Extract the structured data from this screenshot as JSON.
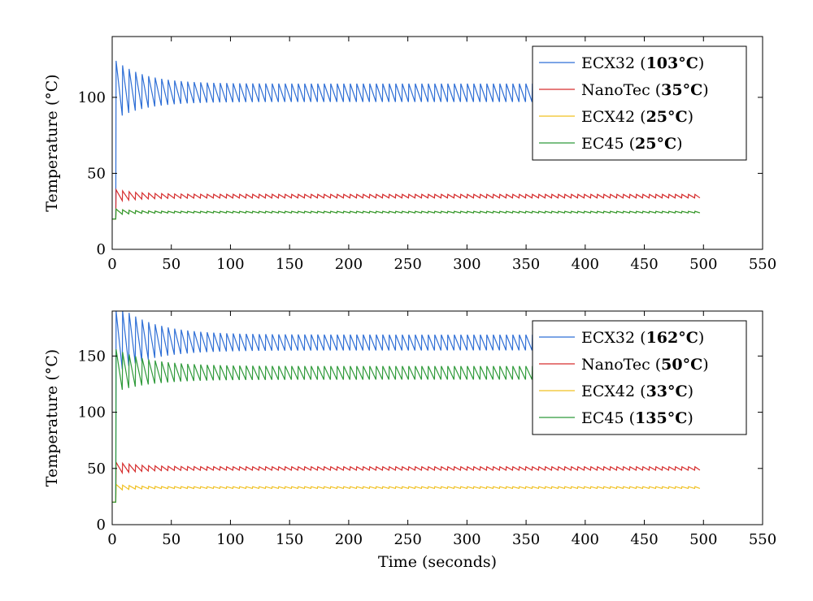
{
  "chart_data": [
    {
      "type": "line",
      "title": "",
      "xlabel": "",
      "ylabel": "Temperature (°C)",
      "xlim": [
        0,
        550
      ],
      "ylim": [
        0,
        140
      ],
      "xticks": [
        "0",
        "50",
        "100",
        "150",
        "200",
        "250",
        "300",
        "350",
        "400",
        "450",
        "500",
        "550"
      ],
      "yticks": [
        "0",
        "50",
        "100"
      ],
      "legend_position": "top-right",
      "grid": false,
      "series": [
        {
          "name": "ECX32",
          "final_label": "103°C",
          "color": "#2f6fd6",
          "start": 20,
          "initial": 118,
          "settle": 103,
          "amplitude": 6,
          "tau": 25
        },
        {
          "name": "NanoTec",
          "final_label": "35°C",
          "color": "#d62f2f",
          "start": 20,
          "initial": 38,
          "settle": 35,
          "amplitude": 1.2,
          "tau": 20
        },
        {
          "name": "ECX42",
          "final_label": "25°C",
          "color": "#f0c020",
          "start": 20,
          "initial": 26,
          "settle": 24.5,
          "amplitude": 0.5,
          "tau": 15
        },
        {
          "name": "EC45",
          "final_label": "25°C",
          "color": "#2f9a3a",
          "start": 20,
          "initial": 26,
          "settle": 24.5,
          "amplitude": 0.5,
          "tau": 15
        }
      ]
    },
    {
      "type": "line",
      "title": "",
      "xlabel": "Time (seconds)",
      "ylabel": "Temperature (°C)",
      "xlim": [
        0,
        550
      ],
      "ylim": [
        0,
        190
      ],
      "xticks": [
        "0",
        "50",
        "100",
        "150",
        "200",
        "250",
        "300",
        "350",
        "400",
        "450",
        "500",
        "550"
      ],
      "yticks": [
        "0",
        "50",
        "100",
        "150"
      ],
      "legend_position": "top-right",
      "grid": false,
      "series": [
        {
          "name": "ECX32",
          "final_label": "162°C",
          "color": "#2f6fd6",
          "start": 20,
          "initial": 190,
          "settle": 162,
          "amplitude": 7,
          "tau": 30
        },
        {
          "name": "NanoTec",
          "final_label": "50°C",
          "color": "#d62f2f",
          "start": 20,
          "initial": 54,
          "settle": 50,
          "amplitude": 1.5,
          "tau": 20
        },
        {
          "name": "ECX42",
          "final_label": "33°C",
          "color": "#f0c020",
          "start": 20,
          "initial": 35,
          "settle": 33,
          "amplitude": 0.8,
          "tau": 15
        },
        {
          "name": "EC45",
          "final_label": "135°C",
          "color": "#2f9a3a",
          "start": 20,
          "initial": 150,
          "settle": 135,
          "amplitude": 6,
          "tau": 30
        }
      ]
    }
  ]
}
